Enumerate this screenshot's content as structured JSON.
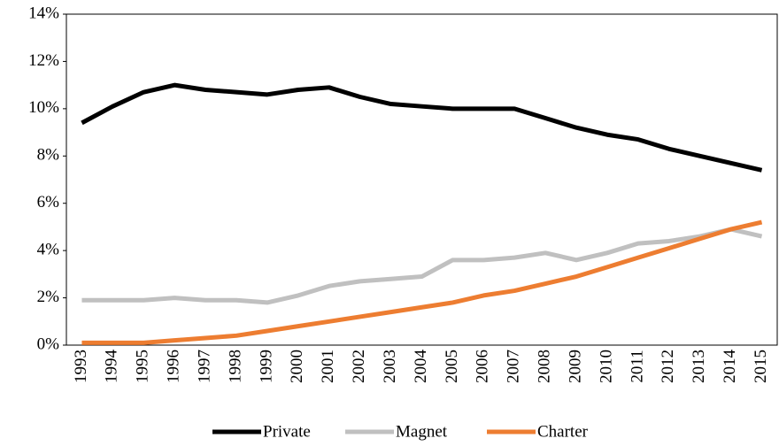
{
  "chart_data": {
    "type": "line",
    "categories": [
      "1993",
      "1994",
      "1995",
      "1996",
      "1997",
      "1998",
      "1999",
      "2000",
      "2001",
      "2002",
      "2003",
      "2004",
      "2005",
      "2006",
      "2007",
      "2008",
      "2009",
      "2010",
      "2011",
      "2012",
      "2013",
      "2014",
      "2015"
    ],
    "series": [
      {
        "name": "Private",
        "color": "#000000",
        "values": [
          9.4,
          10.1,
          10.7,
          11.0,
          10.8,
          10.7,
          10.6,
          10.8,
          10.9,
          10.5,
          10.2,
          10.1,
          10.0,
          10.0,
          10.0,
          9.6,
          9.2,
          8.9,
          8.7,
          8.3,
          8.0,
          7.7,
          7.4
        ]
      },
      {
        "name": "Magnet",
        "color": "#c0c0c0",
        "values": [
          1.9,
          1.9,
          1.9,
          2.0,
          1.9,
          1.9,
          1.8,
          2.1,
          2.5,
          2.7,
          2.8,
          2.9,
          3.6,
          3.6,
          3.7,
          3.9,
          3.6,
          3.9,
          4.3,
          4.4,
          4.6,
          4.9,
          4.6
        ]
      },
      {
        "name": "Charter",
        "color": "#ed7d31",
        "values": [
          0.1,
          0.1,
          0.1,
          0.2,
          0.3,
          0.4,
          0.6,
          0.8,
          1.0,
          1.2,
          1.4,
          1.6,
          1.8,
          2.1,
          2.3,
          2.6,
          2.9,
          3.3,
          3.7,
          4.1,
          4.5,
          4.9,
          5.2
        ]
      }
    ],
    "ylim": [
      0,
      14
    ],
    "yticks": [
      {
        "value": 0,
        "label": "0%"
      },
      {
        "value": 2,
        "label": "2%"
      },
      {
        "value": 4,
        "label": "4%"
      },
      {
        "value": 6,
        "label": "6%"
      },
      {
        "value": 8,
        "label": "8%"
      },
      {
        "value": 10,
        "label": "10%"
      },
      {
        "value": 12,
        "label": "12%"
      },
      {
        "value": 14,
        "label": "14%"
      }
    ],
    "grid": false,
    "legend": "bottom"
  }
}
